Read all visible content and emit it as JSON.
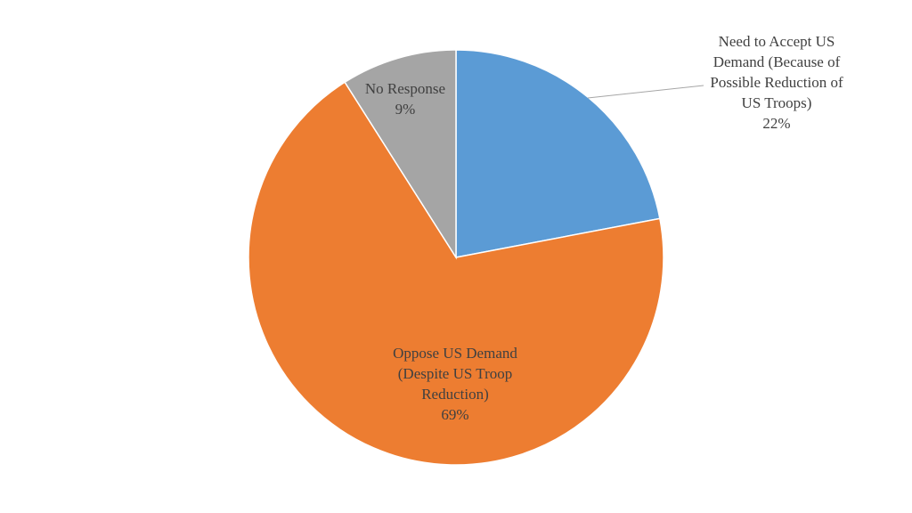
{
  "chart_data": {
    "type": "pie",
    "title": "",
    "start_angle_deg": 0,
    "direction": "clockwise",
    "legend": "none",
    "slices": [
      {
        "label_lines": [
          "Need to Accept US",
          "Demand (Because of",
          "Possible Reduction of",
          "US Troops)"
        ],
        "value": 22,
        "value_label": "22%",
        "color": "#5B9BD5"
      },
      {
        "label_lines": [
          "Oppose US Demand",
          "(Despite US Troop",
          "Reduction)"
        ],
        "value": 69,
        "value_label": "69%",
        "color": "#ED7D31"
      },
      {
        "label_lines": [
          "No Response"
        ],
        "value": 9,
        "value_label": "9%",
        "color": "#A5A5A5"
      }
    ]
  }
}
